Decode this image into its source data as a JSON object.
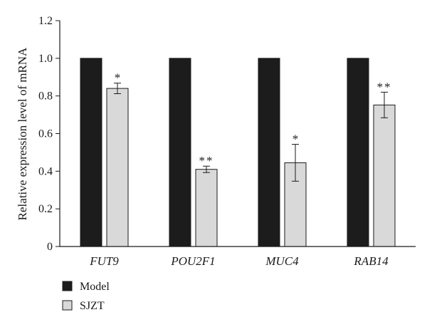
{
  "chart_data": {
    "type": "bar",
    "title": "",
    "xlabel": "",
    "ylabel": "Relative expression level of mRNA",
    "ylim": [
      0,
      1.2
    ],
    "yticks": [
      "0",
      "0.2",
      "0.4",
      "0.6",
      "0.8",
      "1.0",
      "1.2"
    ],
    "categories": [
      "FUT9",
      "POU2F1",
      "MUC4",
      "RAB14"
    ],
    "series": [
      {
        "name": "Model",
        "color": "#1c1c1c",
        "values": [
          1.0,
          1.0,
          1.0,
          1.0
        ],
        "errors": [
          0,
          0,
          0,
          0
        ],
        "significance": [
          "",
          "",
          "",
          ""
        ]
      },
      {
        "name": "SJZT",
        "color": "#d9d9d9",
        "values": [
          0.84,
          0.41,
          0.445,
          0.752
        ],
        "errors": [
          0.028,
          0.017,
          0.098,
          0.068
        ],
        "significance": [
          "*",
          "**",
          "*",
          "**"
        ]
      }
    ],
    "legend_position": "bottom-left",
    "grid": false
  }
}
